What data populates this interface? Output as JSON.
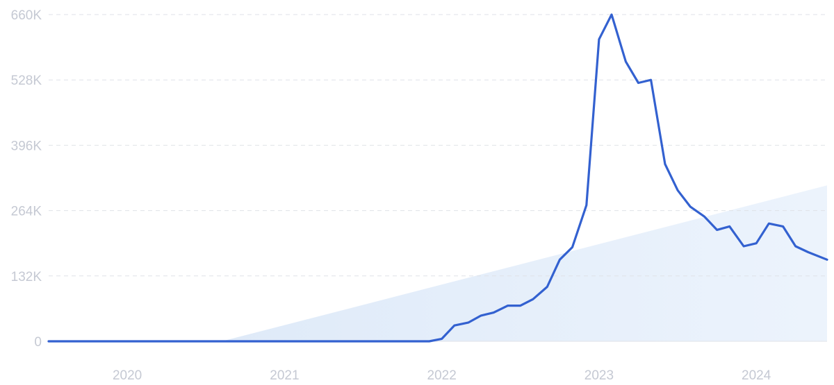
{
  "chart_data": {
    "type": "line",
    "title": "",
    "xlabel": "",
    "ylabel": "",
    "x_domain": [
      2019.5,
      2024.45
    ],
    "ylim": [
      0,
      660000
    ],
    "yticks": [
      0,
      132000,
      264000,
      396000,
      528000,
      660000
    ],
    "ytick_labels": [
      "0",
      "132K",
      "264K",
      "396K",
      "528K",
      "660K"
    ],
    "xticks": [
      2020,
      2021,
      2022,
      2023,
      2024
    ],
    "xtick_labels": [
      "2020",
      "2021",
      "2022",
      "2023",
      "2024"
    ],
    "grid": true,
    "colors": {
      "line": "#3361d0",
      "trend_fill": "#e6f0fb",
      "grid": "#dfe2e8",
      "tick_text": "#c5c9d3"
    },
    "trend": {
      "x": [
        2020.6,
        2024.45
      ],
      "y": [
        0,
        315000
      ]
    },
    "series": [
      {
        "x": [
          2019.5,
          2021.92,
          2022.0,
          2022.08,
          2022.17,
          2022.25,
          2022.33,
          2022.42,
          2022.5,
          2022.58,
          2022.67,
          2022.75,
          2022.83,
          2022.92,
          2023.0,
          2023.08,
          2023.17,
          2023.25,
          2023.33,
          2023.42,
          2023.5,
          2023.58,
          2023.67,
          2023.75,
          2023.83,
          2023.92,
          2024.0,
          2024.08,
          2024.17,
          2024.25,
          2024.33,
          2024.45
        ],
        "y": [
          0,
          0,
          5000,
          32000,
          38000,
          52000,
          58000,
          72000,
          72000,
          85000,
          110000,
          165000,
          190000,
          275000,
          610000,
          660000,
          565000,
          522000,
          528000,
          358000,
          305000,
          272000,
          252000,
          225000,
          232000,
          192000,
          198000,
          238000,
          232000,
          192000,
          180000,
          165000
        ]
      }
    ]
  }
}
